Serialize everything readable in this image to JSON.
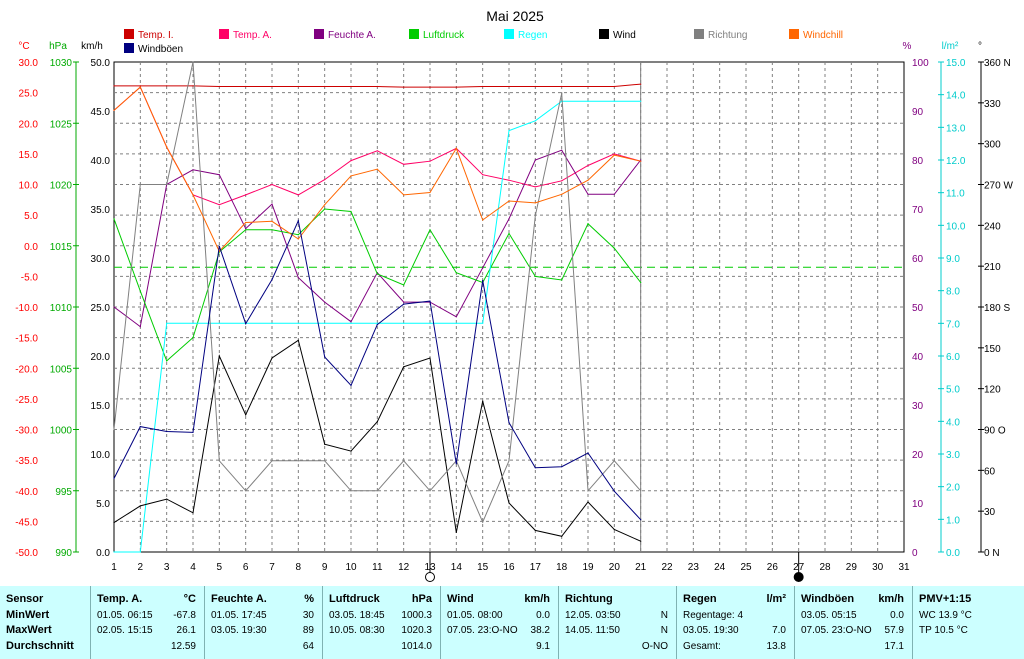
{
  "chart_data": {
    "type": "line",
    "title": "Mai 2025",
    "x": [
      1,
      2,
      3,
      4,
      5,
      6,
      7,
      8,
      9,
      10,
      11,
      12,
      13,
      14,
      15,
      16,
      17,
      18,
      19,
      20,
      21
    ],
    "xlim": [
      1,
      31
    ],
    "x_ticks": [
      1,
      2,
      3,
      4,
      5,
      6,
      7,
      8,
      9,
      10,
      11,
      12,
      13,
      14,
      15,
      16,
      17,
      18,
      19,
      20,
      21,
      22,
      23,
      24,
      25,
      26,
      27,
      28,
      29,
      30,
      31
    ],
    "grid": true,
    "current_day_marker": 21,
    "moon_phases": [
      {
        "day": 13,
        "phase": "full"
      },
      {
        "day": 27,
        "phase": "new"
      }
    ],
    "axes": [
      {
        "unit": "°C",
        "color": "#ff0000",
        "min": -50,
        "max": 30,
        "ticks": [
          "30.0",
          "25.0",
          "20.0",
          "15.0",
          "10.0",
          "5.0",
          "0.0",
          "-5.0",
          "-10.0",
          "-15.0",
          "-20.0",
          "-25.0",
          "-30.0",
          "-35.0",
          "-40.0",
          "-45.0",
          "-50.0"
        ]
      },
      {
        "unit": "hPa",
        "color": "#00aa00",
        "min": 990,
        "max": 1030,
        "ticks": [
          "1030",
          "1025",
          "1020",
          "1015",
          "1010",
          "1005",
          "1000",
          "995",
          "990"
        ]
      },
      {
        "unit": "km/h",
        "color": "#000000",
        "min": 0,
        "max": 50,
        "ticks": [
          "50.0",
          "45.0",
          "40.0",
          "35.0",
          "30.0",
          "25.0",
          "20.0",
          "15.0",
          "10.0",
          "5.0",
          "0.0"
        ]
      },
      {
        "unit": "%",
        "color": "#800080",
        "min": 0,
        "max": 100,
        "ticks": [
          "100",
          "90",
          "80",
          "70",
          "60",
          "50",
          "40",
          "30",
          "20",
          "10",
          "0"
        ]
      },
      {
        "unit": "l/m²",
        "color": "#00cccc",
        "min": 0,
        "max": 15,
        "ticks": [
          "15.0",
          "14.0",
          "13.0",
          "12.0",
          "11.0",
          "10.0",
          "9.0",
          "8.0",
          "7.0",
          "6.0",
          "5.0",
          "4.0",
          "3.0",
          "2.0",
          "1.0",
          "0.0"
        ]
      },
      {
        "unit": "°",
        "color": "#000000",
        "min": 0,
        "max": 360,
        "ticks": [
          "360 N",
          "330",
          "300",
          "270 W",
          "240",
          "210",
          "180 S",
          "150",
          "120",
          "90 O",
          "60",
          "30",
          "0 N"
        ]
      }
    ],
    "series": [
      {
        "name": "Temp. I.",
        "color": "#cc0000",
        "axis": "°C",
        "values": [
          26.1,
          26.1,
          26.1,
          26.1,
          26.0,
          26.0,
          26.0,
          26.0,
          26.0,
          26.0,
          26.0,
          25.9,
          25.9,
          25.9,
          26.0,
          26.0,
          26.0,
          26.0,
          26.0,
          26.0,
          26.4
        ]
      },
      {
        "name": "Temp. A.",
        "color": "#ff0066",
        "axis": "°C",
        "values": [
          22.1,
          25.9,
          16.1,
          8.3,
          6.7,
          8.3,
          10.0,
          8.3,
          10.8,
          13.9,
          15.5,
          13.3,
          13.8,
          15.9,
          11.6,
          10.7,
          9.6,
          10.6,
          13.1,
          15.0,
          13.8
        ]
      },
      {
        "name": "Feuchte A.",
        "color": "#800080",
        "axis": "%",
        "values": [
          50,
          46,
          75,
          78,
          77,
          66,
          71,
          56,
          51,
          47,
          57,
          51,
          51,
          48,
          58,
          68,
          80,
          82,
          73,
          73,
          80
        ]
      },
      {
        "name": "Luftdruck",
        "color": "#00cc00",
        "axis": "hPa",
        "values": [
          1017.2,
          1011.3,
          1005.6,
          1007.5,
          1014.5,
          1016.3,
          1016.3,
          1015.9,
          1018.0,
          1017.8,
          1012.7,
          1011.8,
          1016.3,
          1012.8,
          1012.0,
          1016.0,
          1012.5,
          1012.2,
          1016.8,
          1014.8,
          1012.0
        ]
      },
      {
        "name": "Regen",
        "color": "#00ffff",
        "axis": "l/m²",
        "values": [
          0.0,
          0.0,
          7.0,
          7.0,
          7.0,
          7.0,
          7.0,
          7.0,
          7.0,
          7.0,
          7.0,
          7.0,
          7.0,
          7.0,
          7.0,
          12.9,
          13.2,
          13.8,
          13.8,
          13.8,
          13.8
        ]
      },
      {
        "name": "Wind",
        "color": "#000000",
        "axis": "km/h",
        "values": [
          3.0,
          4.7,
          5.4,
          4.0,
          20.0,
          14.0,
          19.8,
          21.6,
          11.0,
          10.3,
          13.3,
          18.9,
          19.8,
          2.0,
          15.4,
          5.0,
          2.2,
          1.6,
          5.1,
          2.3,
          1.1
        ]
      },
      {
        "name": "Richtung",
        "color": "#808080",
        "axis": "°",
        "values": [
          90,
          270,
          270,
          360,
          67,
          45,
          67,
          67,
          67,
          45,
          45,
          67,
          45,
          67,
          22,
          67,
          247,
          337,
          45,
          67,
          45
        ]
      },
      {
        "name": "Windchill",
        "color": "#ff6600",
        "axis": "°C",
        "values": [
          22.1,
          25.9,
          16.1,
          8.3,
          -0.9,
          3.8,
          4.0,
          1.1,
          6.7,
          11.4,
          12.5,
          8.3,
          8.7,
          15.9,
          4.2,
          7.3,
          7.0,
          8.4,
          10.7,
          14.8,
          13.8
        ]
      },
      {
        "name": "Windböen",
        "color": "#000080",
        "axis": "km/h",
        "values": [
          7.5,
          12.8,
          12.3,
          12.2,
          31.2,
          23.3,
          27.8,
          33.8,
          19.9,
          17.0,
          23.2,
          25.3,
          25.6,
          9.0,
          27.7,
          13.2,
          8.6,
          8.7,
          10.1,
          6.2,
          3.3
        ]
      }
    ]
  },
  "legend_labels": [
    "Temp. I.",
    "Windböen",
    "Temp. A.",
    "Feuchte A.",
    "Luftdruck",
    "Regen",
    "Wind",
    "Richtung",
    "Windchill"
  ],
  "table": {
    "sensor": {
      "header": "Sensor",
      "rows": [
        "MinWert",
        "MaxWert",
        "Durchschnitt"
      ]
    },
    "temp_a": {
      "header": "Temp. A.",
      "unit": "°C",
      "rows": [
        {
          "date": "01.05.",
          "time": "06:15",
          "value": "-67.8"
        },
        {
          "date": "02.05.",
          "time": "15:15",
          "value": "26.1"
        },
        {
          "date": "",
          "time": "",
          "value": "12.59"
        }
      ]
    },
    "feuchte_a": {
      "header": "Feuchte A.",
      "unit": "%",
      "rows": [
        {
          "date": "01.05.",
          "time": "17:45",
          "value": "30"
        },
        {
          "date": "03.05.",
          "time": "19:30",
          "value": "89"
        },
        {
          "date": "",
          "time": "",
          "value": "64"
        }
      ]
    },
    "luftdruck": {
      "header": "Luftdruck",
      "unit": "hPa",
      "rows": [
        {
          "date": "03.05.",
          "time": "18:45",
          "value": "1000.3"
        },
        {
          "date": "10.05.",
          "time": "08:30",
          "value": "1020.3"
        },
        {
          "date": "",
          "time": "",
          "value": "1014.0"
        }
      ]
    },
    "wind": {
      "header": "Wind",
      "unit": "km/h",
      "rows": [
        {
          "date": "01.05.",
          "time": "08:00",
          "value": "0.0"
        },
        {
          "date": "07.05.",
          "time": "23:O-NO",
          "value": "38.2"
        },
        {
          "date": "",
          "time": "",
          "value": "9.1"
        }
      ]
    },
    "richtung": {
      "header": "Richtung",
      "unit": "",
      "rows": [
        {
          "date": "12.05.",
          "time": "03:50",
          "value": "N"
        },
        {
          "date": "14.05.",
          "time": "11:50",
          "value": "N"
        },
        {
          "date": "",
          "time": "",
          "value": "O-NO"
        }
      ]
    },
    "regen": {
      "header": "Regen",
      "unit": "l/m²",
      "line1": "Regentage: 4",
      "line2_date": "03.05.",
      "line2_time": "19:30",
      "line2_value": "7.0",
      "line3_label": "Gesamt:",
      "line3_value": "13.8"
    },
    "windboeen": {
      "header": "Windböen",
      "unit": "km/h",
      "rows": [
        {
          "date": "03.05.",
          "time": "05:15",
          "value": "0.0"
        },
        {
          "date": "07.05.",
          "time": "23:O-NO",
          "value": "57.9"
        },
        {
          "date": "",
          "time": "",
          "value": "17.1"
        }
      ]
    },
    "pmv": {
      "header": "PMV+1:15",
      "line1": "WC 13.9 °C",
      "line2": "TP 10.5 °C"
    }
  }
}
